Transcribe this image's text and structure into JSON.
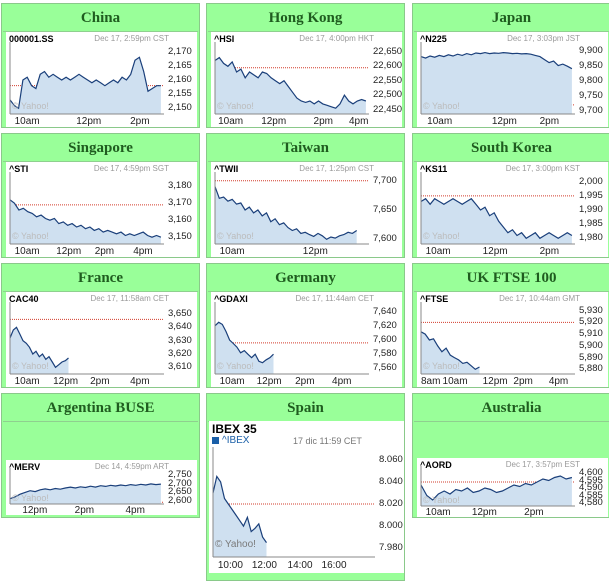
{
  "panels": [
    {
      "id": "china",
      "title": "China",
      "ticker": "000001.SS",
      "time": "Dec 17, 2:59pm CST",
      "yticks": [
        "2,170",
        "2,165",
        "2,160",
        "2,155",
        "2,150"
      ],
      "yvals": [
        2170,
        2165,
        2160,
        2155,
        2150
      ],
      "ymin": 2148,
      "ymax": 2172,
      "xticks": [
        "10am",
        "12pm",
        "2pm"
      ],
      "xpos": [
        0.03,
        0.43,
        0.78
      ],
      "ref": 2158,
      "series": [
        2153,
        2151,
        2150,
        2160,
        2161,
        2158,
        2157,
        2162,
        2163,
        2161,
        2162,
        2161,
        2160,
        2161,
        2160,
        2161,
        2162,
        2161,
        2160,
        2159,
        2160,
        2159,
        2158,
        2159,
        2160,
        2159,
        2161,
        2160,
        2162,
        2167,
        2168,
        2163,
        2156,
        2157,
        2158,
        2158
      ]
    },
    {
      "id": "hongkong",
      "title": "Hong Kong",
      "ticker": "^HSI",
      "time": "Dec 17, 4:00pm HKT",
      "yticks": [
        "22,650",
        "22,600",
        "22,550",
        "22,500",
        "22,450"
      ],
      "yvals": [
        22650,
        22600,
        22550,
        22500,
        22450
      ],
      "ymin": 22435,
      "ymax": 22670,
      "xticks": [
        "10am",
        "12pm",
        "2pm",
        "4pm"
      ],
      "xpos": [
        0.02,
        0.3,
        0.64,
        0.87
      ],
      "ref": 22595,
      "series": [
        22620,
        22630,
        22610,
        22600,
        22615,
        22580,
        22590,
        22560,
        22580,
        22570,
        22560,
        22580,
        22575,
        22560,
        22550,
        22540,
        22550,
        22530,
        22510,
        22490,
        22480,
        22475,
        22480,
        22470,
        22480,
        22470,
        22465,
        22460,
        22455,
        22470,
        22500,
        22480,
        22470,
        22480,
        22485,
        22480
      ]
    },
    {
      "id": "japan",
      "title": "Japan",
      "ticker": "^N225",
      "time": "Dec 17, 3:03pm JST",
      "yticks": [
        "9,900",
        "9,850",
        "9,800",
        "9,750",
        "9,700"
      ],
      "yvals": [
        9900,
        9850,
        9800,
        9750,
        9700
      ],
      "ymin": 9690,
      "ymax": 9915,
      "xticks": [
        "10am",
        "12pm",
        "2pm"
      ],
      "xpos": [
        0.04,
        0.46,
        0.77
      ],
      "ref": 9720,
      "series": [
        9880,
        9875,
        9882,
        9878,
        9884,
        9880,
        9886,
        9882,
        9888,
        9884,
        9890,
        9886,
        9892,
        9890,
        9893,
        9890,
        9892,
        9891,
        9893,
        9892,
        9890,
        9891,
        9889,
        9890,
        9888,
        9884,
        9880,
        9870,
        9860,
        9865,
        9850,
        9855,
        9848,
        9840
      ]
    },
    {
      "id": "singapore",
      "title": "Singapore",
      "ticker": "^STI",
      "time": "Dec 17, 4:59pm SGT",
      "yticks": [
        "3,180",
        "3,170",
        "3,160",
        "3,150"
      ],
      "yvals": [
        3180,
        3170,
        3160,
        3150
      ],
      "ymin": 3146,
      "ymax": 3186,
      "xticks": [
        "10am",
        "12pm",
        "2pm",
        "4pm"
      ],
      "xpos": [
        0.03,
        0.3,
        0.55,
        0.8
      ],
      "ref": 3169,
      "series": [
        3172,
        3170,
        3166,
        3167,
        3165,
        3164,
        3162,
        3163,
        3161,
        3160,
        3161,
        3158,
        3159,
        3157,
        3158,
        3156,
        3157,
        3155,
        3156,
        3154,
        3155,
        3153,
        3154,
        3153,
        3152,
        3153,
        3151,
        3152,
        3151,
        3152,
        3153,
        3151,
        3150,
        3151,
        3150
      ]
    },
    {
      "id": "taiwan",
      "title": "Taiwan",
      "ticker": "^TWII",
      "time": "Dec 17, 1:25pm CST",
      "yticks": [
        "7,700",
        "7,650",
        "7,600"
      ],
      "yvals": [
        7700,
        7650,
        7600
      ],
      "ymin": 7592,
      "ymax": 7708,
      "xticks": [
        "10am",
        "12pm"
      ],
      "xpos": [
        0.03,
        0.57
      ],
      "ref": 7700,
      "series": [
        7690,
        7670,
        7672,
        7665,
        7668,
        7660,
        7662,
        7650,
        7655,
        7645,
        7650,
        7640,
        7645,
        7630,
        7635,
        7625,
        7628,
        7620,
        7615,
        7618,
        7610,
        7612,
        7608,
        7605,
        7610,
        7606,
        7600,
        7604,
        7602,
        7606,
        7608,
        7612,
        7610,
        7615
      ]
    },
    {
      "id": "southkorea",
      "title": "South Korea",
      "ticker": "^KS11",
      "time": "Dec 17, 3:00pm KST",
      "yticks": [
        "2,000",
        "1,995",
        "1,990",
        "1,985",
        "1,980"
      ],
      "yvals": [
        2000,
        1995,
        1990,
        1985,
        1980
      ],
      "ymin": 1978,
      "ymax": 2002,
      "xticks": [
        "10am",
        "12pm",
        "2pm"
      ],
      "xpos": [
        0.03,
        0.4,
        0.77
      ],
      "ref": 1995,
      "series": [
        1993,
        1994,
        1992,
        1994,
        1993,
        1992,
        1993,
        1994,
        1993,
        1992,
        1993,
        1994,
        1992,
        1990,
        1991,
        1988,
        1989,
        1986,
        1984,
        1982,
        1983,
        1981,
        1982,
        1980,
        1981,
        1982,
        1980,
        1981,
        1982,
        1981,
        1980,
        1981,
        1982,
        1981
      ]
    },
    {
      "id": "france",
      "title": "France",
      "ticker": "CAC40",
      "time": "Dec 17, 11:58am CET",
      "yticks": [
        "3,650",
        "3,640",
        "3,630",
        "3,620",
        "3,610"
      ],
      "yvals": [
        3650,
        3640,
        3630,
        3620,
        3610
      ],
      "ymin": 3605,
      "ymax": 3656,
      "xticks": [
        "10am",
        "12pm",
        "2pm",
        "4pm"
      ],
      "xpos": [
        0.03,
        0.28,
        0.52,
        0.78
      ],
      "ref": 3646,
      "series": [
        3632,
        3638,
        3640,
        3635,
        3630,
        3628,
        3625,
        3620,
        3622,
        3618,
        3620,
        3616,
        3618,
        3614,
        3610,
        3612,
        3614,
        3615,
        3617
      ]
    },
    {
      "id": "germany",
      "title": "Germany",
      "ticker": "^GDAXI",
      "time": "Dec 17, 11:44am CET",
      "yticks": [
        "7,640",
        "7,620",
        "7,600",
        "7,580",
        "7,560"
      ],
      "yvals": [
        7640,
        7620,
        7600,
        7580,
        7560
      ],
      "ymin": 7552,
      "ymax": 7648,
      "xticks": [
        "10am",
        "12pm",
        "2pm",
        "4pm"
      ],
      "xpos": [
        0.03,
        0.27,
        0.52,
        0.76
      ],
      "ref": 7596,
      "series": [
        7620,
        7625,
        7622,
        7612,
        7600,
        7595,
        7590,
        7582,
        7585,
        7580,
        7575,
        7580,
        7570,
        7568,
        7572,
        7575,
        7580
      ]
    },
    {
      "id": "ukftse",
      "title": "UK FTSE 100",
      "ticker": "^FTSE",
      "time": "Dec 17, 10:44am GMT",
      "yticks": [
        "5,930",
        "5,920",
        "5,910",
        "5,900",
        "5,890",
        "5,880"
      ],
      "yvals": [
        5930,
        5920,
        5910,
        5900,
        5890,
        5880
      ],
      "ymin": 5876,
      "ymax": 5934,
      "xticks": [
        "8am",
        "10am",
        "12pm",
        "2pm",
        "4pm"
      ],
      "xpos": [
        0.0,
        0.14,
        0.4,
        0.6,
        0.83
      ],
      "ref": 5920,
      "series": [
        5912,
        5910,
        5905,
        5906,
        5900,
        5895,
        5898,
        5892,
        5890,
        5888,
        5885,
        5886,
        5883,
        5880,
        5882
      ]
    },
    {
      "id": "argentina",
      "title": "Argentina BUSE",
      "ticker": "^MERV",
      "time": "Dec 14, 4:59pm ART",
      "yticks": [
        "2,750",
        "2,700",
        "2,650",
        "2,600"
      ],
      "yvals": [
        2750,
        2700,
        2650,
        2600
      ],
      "ymin": 2585,
      "ymax": 2765,
      "xticks": [
        "12pm",
        "2pm",
        "4pm"
      ],
      "xpos": [
        0.08,
        0.42,
        0.75
      ],
      "ref": 2595,
      "series": [
        2615,
        2625,
        2640,
        2650,
        2660,
        2655,
        2665,
        2670,
        2665,
        2672,
        2668,
        2675,
        2680,
        2675,
        2682,
        2678,
        2685,
        2680,
        2688,
        2684,
        2690,
        2686,
        2692,
        2688,
        2694,
        2690,
        2696,
        2692,
        2698,
        2694,
        2697
      ]
    },
    {
      "id": "spain",
      "title": "Spain",
      "ticker": "IBEX 35",
      "sub": "^IBEX",
      "time": "17 dic 11:59 CET",
      "yticks": [
        "8.060",
        "8.040",
        "8.020",
        "8.000",
        "7.980"
      ],
      "yvals": [
        8060,
        8040,
        8020,
        8000,
        7980
      ],
      "ymin": 7972,
      "ymax": 8068,
      "xticks": [
        "10:00",
        "12:00",
        "14:00",
        "16:00"
      ],
      "xpos": [
        0.03,
        0.24,
        0.46,
        0.67
      ],
      "ref": 8020,
      "series": [
        8030,
        8045,
        8040,
        8025,
        8020,
        8015,
        8010,
        8005,
        8000,
        8008,
        7995,
        7998,
        8002,
        7990,
        7985
      ]
    },
    {
      "id": "australia",
      "title": "Australia",
      "ticker": "^AORD",
      "time": "Dec 17, 3:57pm EST",
      "yticks": [
        "4,600",
        "4,595",
        "4,590",
        "4,585",
        "4,580"
      ],
      "yvals": [
        4600,
        4595,
        4590,
        4585,
        4580
      ],
      "ymin": 4578,
      "ymax": 4602,
      "xticks": [
        "10am",
        "12pm",
        "2pm"
      ],
      "xpos": [
        0.03,
        0.33,
        0.67
      ],
      "ref": 4594,
      "series": [
        4592,
        4585,
        4582,
        4586,
        4588,
        4586,
        4589,
        4588,
        4590,
        4587,
        4588,
        4590,
        4589,
        4587,
        4588,
        4590,
        4592,
        4591,
        4593,
        4592,
        4594,
        4596,
        4595,
        4597,
        4598,
        4596,
        4597
      ]
    }
  ],
  "watermark": "© Yahoo!",
  "colors": {
    "line": "#1a3f7a",
    "fill": "#cfe0f0",
    "ref": "#d23c2c",
    "panel": "#99ff99"
  }
}
